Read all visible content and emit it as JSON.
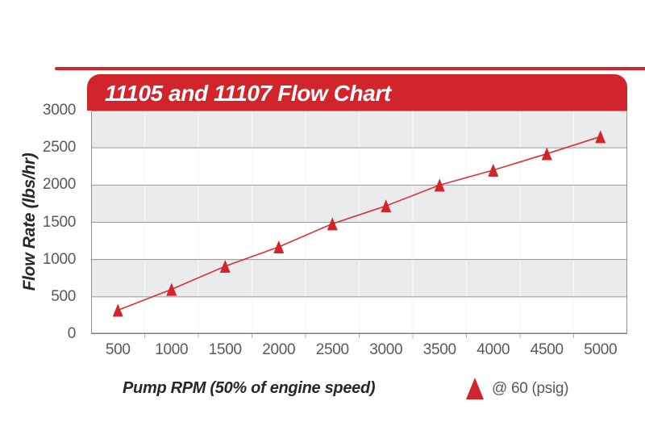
{
  "header": {
    "title": "11105 and 11107 Flow Chart"
  },
  "axes": {
    "x_title": "Pump RPM (50% of engine speed)",
    "y_title": "Flow Rate (lbs/hr)"
  },
  "legend": {
    "label": "@ 60 (psig)",
    "marker": "triangle-up"
  },
  "colors": {
    "red": "#d2242b",
    "line_red": "#dd3036",
    "band_gray": "#e9ebec",
    "band_white": "#ffffff",
    "grid_major": "#98999b",
    "grid_minor": "#f6f7f8",
    "axis_border": "#919395",
    "axis_bottom": "#7d7f81",
    "tick_stub": "#b0b2b4",
    "tick_text": "#58595b",
    "title_text": "#272727"
  },
  "chart_data": {
    "type": "line",
    "title": "11105 and 11107 Flow Chart",
    "xlabel": "Pump RPM (50% of engine speed)",
    "ylabel": "Flow Rate (lbs/hr)",
    "x": [
      500,
      1000,
      1500,
      2000,
      2500,
      3000,
      3500,
      4000,
      4500,
      5000
    ],
    "series": [
      {
        "name": "@ 60 (psig)",
        "marker": "triangle-up",
        "color": "#d2242b",
        "values": [
          320,
          600,
          910,
          1170,
          1480,
          1720,
          2000,
          2200,
          2420,
          2650
        ]
      }
    ],
    "xlim": [
      250,
      5250
    ],
    "ylim": [
      0,
      3000
    ],
    "xticks": [
      500,
      1000,
      1500,
      2000,
      2500,
      3000,
      3500,
      4000,
      4500,
      5000
    ],
    "yticks": [
      0,
      500,
      1000,
      1500,
      2000,
      2500,
      3000
    ],
    "grid": {
      "horizontal": "major gridline every 500 lbs/hr",
      "vertical": "faint minor lines at midpoints between RPM ticks"
    },
    "plot_bands": "alternating white/light-gray horizontal bands every 500 lbs/hr",
    "legend_position": "below plot, right of x-axis title"
  }
}
